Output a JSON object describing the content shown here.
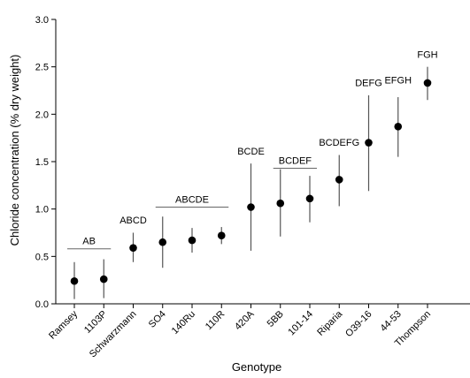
{
  "chart_data": {
    "type": "scatter",
    "title": "",
    "xlabel": "Genotype",
    "ylabel": "Chloride concentration (% dry weight)",
    "ylim": [
      0.0,
      3.0
    ],
    "yticks": [
      "0.0",
      "0.5",
      "1.0",
      "1.5",
      "2.0",
      "2.5",
      "3.0"
    ],
    "grid": false,
    "legend": "none",
    "colors": {
      "marker": "#000000",
      "errorbar": "#555555",
      "axis": "#000000",
      "group_line": "#666666"
    },
    "categories": [
      "Ramsey",
      "1103P",
      "Schwarzmann",
      "SO4",
      "140Ru",
      "110R",
      "420A",
      "5BB",
      "101-14",
      "Riparia",
      "O39-16",
      "44-53",
      "Thompson"
    ],
    "series": [
      {
        "values": [
          0.24,
          0.26,
          0.59,
          0.65,
          0.67,
          0.72,
          1.02,
          1.06,
          1.11,
          1.31,
          1.7,
          1.87,
          2.33
        ],
        "lower": [
          0.05,
          0.06,
          0.44,
          0.38,
          0.54,
          0.63,
          0.56,
          0.71,
          0.86,
          1.03,
          1.19,
          1.55,
          2.15
        ],
        "upper": [
          0.44,
          0.47,
          0.75,
          0.92,
          0.8,
          0.81,
          1.48,
          1.42,
          1.35,
          1.57,
          2.2,
          2.18,
          2.5
        ]
      }
    ],
    "groups": [
      {
        "label": "AB",
        "from": 0,
        "to": 1,
        "y": 0.58,
        "underline": true
      },
      {
        "label": "ABCD",
        "from": 2,
        "to": 2,
        "y": 0.8,
        "underline": false
      },
      {
        "label": "ABCDE",
        "from": 3,
        "to": 5,
        "y": 1.02,
        "underline": true
      },
      {
        "label": "BCDE",
        "from": 6,
        "to": 6,
        "y": 1.53,
        "underline": false
      },
      {
        "label": "BCDEF",
        "from": 7,
        "to": 8,
        "y": 1.43,
        "underline": true
      },
      {
        "label": "BCDEFG",
        "from": 9,
        "to": 9,
        "y": 1.62,
        "underline": false
      },
      {
        "label": "DEFG",
        "from": 10,
        "to": 10,
        "y": 2.25,
        "underline": false
      },
      {
        "label": "EFGH",
        "from": 11,
        "to": 11,
        "y": 2.28,
        "underline": false
      },
      {
        "label": "FGH",
        "from": 12,
        "to": 12,
        "y": 2.55,
        "underline": false
      }
    ]
  }
}
